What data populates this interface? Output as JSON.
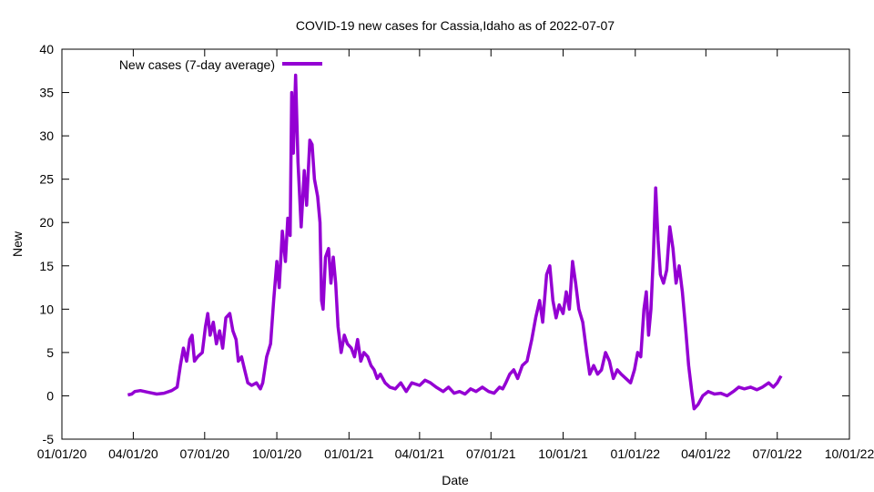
{
  "chart_data": {
    "type": "line",
    "title": "COVID-19 new cases for Cassia,Idaho as of 2022-07-07",
    "xlabel": "Date",
    "ylabel": "New",
    "ylim": [
      -5,
      40
    ],
    "yticks": [
      -5,
      0,
      5,
      10,
      15,
      20,
      25,
      30,
      35,
      40
    ],
    "xlim": [
      "2020-01-01",
      "2022-10-01"
    ],
    "xtick_labels": [
      "01/01/20",
      "04/01/20",
      "07/01/20",
      "10/01/20",
      "01/01/21",
      "04/01/21",
      "07/01/21",
      "10/01/21",
      "01/01/22",
      "04/01/22",
      "07/01/22",
      "10/01/22"
    ],
    "xtick_dates": [
      "2020-01-01",
      "2020-04-01",
      "2020-07-01",
      "2020-10-01",
      "2021-01-01",
      "2021-04-01",
      "2021-07-01",
      "2021-10-01",
      "2022-01-01",
      "2022-04-01",
      "2022-07-01",
      "2022-10-01"
    ],
    "legend_position": "top-left",
    "grid": false,
    "series": [
      {
        "name": "New cases (7-day average)",
        "color": "#9400d3",
        "points": [
          [
            "2020-03-25",
            0.1
          ],
          [
            "2020-03-30",
            0.2
          ],
          [
            "2020-04-03",
            0.5
          ],
          [
            "2020-04-10",
            0.6
          ],
          [
            "2020-04-20",
            0.4
          ],
          [
            "2020-05-01",
            0.2
          ],
          [
            "2020-05-10",
            0.3
          ],
          [
            "2020-05-20",
            0.6
          ],
          [
            "2020-05-27",
            1.0
          ],
          [
            "2020-05-31",
            3.5
          ],
          [
            "2020-06-04",
            5.5
          ],
          [
            "2020-06-08",
            4.0
          ],
          [
            "2020-06-12",
            6.5
          ],
          [
            "2020-06-15",
            7.0
          ],
          [
            "2020-06-18",
            4.0
          ],
          [
            "2020-06-22",
            4.5
          ],
          [
            "2020-06-28",
            5.0
          ],
          [
            "2020-07-02",
            8.0
          ],
          [
            "2020-07-05",
            9.5
          ],
          [
            "2020-07-08",
            7.0
          ],
          [
            "2020-07-12",
            8.5
          ],
          [
            "2020-07-16",
            6.0
          ],
          [
            "2020-07-20",
            7.5
          ],
          [
            "2020-07-24",
            5.5
          ],
          [
            "2020-07-28",
            9.0
          ],
          [
            "2020-08-02",
            9.5
          ],
          [
            "2020-08-06",
            7.5
          ],
          [
            "2020-08-10",
            6.5
          ],
          [
            "2020-08-13",
            4.0
          ],
          [
            "2020-08-17",
            4.5
          ],
          [
            "2020-08-21",
            3.0
          ],
          [
            "2020-08-25",
            1.5
          ],
          [
            "2020-08-30",
            1.2
          ],
          [
            "2020-09-05",
            1.5
          ],
          [
            "2020-09-10",
            0.8
          ],
          [
            "2020-09-13",
            1.5
          ],
          [
            "2020-09-18",
            4.5
          ],
          [
            "2020-09-23",
            6.0
          ],
          [
            "2020-09-27",
            11.0
          ],
          [
            "2020-10-01",
            15.5
          ],
          [
            "2020-10-04",
            12.5
          ],
          [
            "2020-10-08",
            19.0
          ],
          [
            "2020-10-12",
            15.5
          ],
          [
            "2020-10-15",
            20.5
          ],
          [
            "2020-10-18",
            18.5
          ],
          [
            "2020-10-20",
            35.0
          ],
          [
            "2020-10-22",
            28.0
          ],
          [
            "2020-10-25",
            37.0
          ],
          [
            "2020-10-28",
            27.0
          ],
          [
            "2020-11-01",
            19.5
          ],
          [
            "2020-11-05",
            26.0
          ],
          [
            "2020-11-08",
            22.0
          ],
          [
            "2020-11-12",
            29.5
          ],
          [
            "2020-11-15",
            29.0
          ],
          [
            "2020-11-18",
            25.0
          ],
          [
            "2020-11-22",
            23.0
          ],
          [
            "2020-11-25",
            20.0
          ],
          [
            "2020-11-27",
            11.0
          ],
          [
            "2020-11-29",
            10.0
          ],
          [
            "2020-12-02",
            16.0
          ],
          [
            "2020-12-06",
            17.0
          ],
          [
            "2020-12-09",
            13.0
          ],
          [
            "2020-12-12",
            16.0
          ],
          [
            "2020-12-15",
            13.0
          ],
          [
            "2020-12-18",
            8.0
          ],
          [
            "2020-12-22",
            5.0
          ],
          [
            "2020-12-26",
            7.0
          ],
          [
            "2020-12-30",
            6.0
          ],
          [
            "2021-01-04",
            5.5
          ],
          [
            "2021-01-08",
            4.5
          ],
          [
            "2021-01-12",
            6.5
          ],
          [
            "2021-01-16",
            4.0
          ],
          [
            "2021-01-20",
            5.0
          ],
          [
            "2021-01-25",
            4.5
          ],
          [
            "2021-01-29",
            3.5
          ],
          [
            "2021-02-02",
            3.0
          ],
          [
            "2021-02-06",
            2.0
          ],
          [
            "2021-02-10",
            2.5
          ],
          [
            "2021-02-16",
            1.5
          ],
          [
            "2021-02-22",
            1.0
          ],
          [
            "2021-03-01",
            0.8
          ],
          [
            "2021-03-08",
            1.5
          ],
          [
            "2021-03-15",
            0.5
          ],
          [
            "2021-03-22",
            1.5
          ],
          [
            "2021-04-01",
            1.2
          ],
          [
            "2021-04-08",
            1.8
          ],
          [
            "2021-04-15",
            1.5
          ],
          [
            "2021-04-22",
            1.0
          ],
          [
            "2021-05-01",
            0.5
          ],
          [
            "2021-05-08",
            1.0
          ],
          [
            "2021-05-15",
            0.3
          ],
          [
            "2021-05-22",
            0.5
          ],
          [
            "2021-05-29",
            0.2
          ],
          [
            "2021-06-05",
            0.8
          ],
          [
            "2021-06-12",
            0.5
          ],
          [
            "2021-06-20",
            1.0
          ],
          [
            "2021-06-28",
            0.5
          ],
          [
            "2021-07-05",
            0.3
          ],
          [
            "2021-07-12",
            1.0
          ],
          [
            "2021-07-16",
            0.8
          ],
          [
            "2021-07-20",
            1.5
          ],
          [
            "2021-07-25",
            2.5
          ],
          [
            "2021-07-30",
            3.0
          ],
          [
            "2021-08-04",
            2.0
          ],
          [
            "2021-08-10",
            3.5
          ],
          [
            "2021-08-16",
            4.0
          ],
          [
            "2021-08-22",
            6.5
          ],
          [
            "2021-08-27",
            9.0
          ],
          [
            "2021-09-01",
            11.0
          ],
          [
            "2021-09-05",
            8.5
          ],
          [
            "2021-09-10",
            14.0
          ],
          [
            "2021-09-14",
            15.0
          ],
          [
            "2021-09-18",
            11.0
          ],
          [
            "2021-09-22",
            9.0
          ],
          [
            "2021-09-26",
            10.5
          ],
          [
            "2021-10-01",
            9.5
          ],
          [
            "2021-10-05",
            12.0
          ],
          [
            "2021-10-09",
            10.0
          ],
          [
            "2021-10-13",
            15.5
          ],
          [
            "2021-10-17",
            13.0
          ],
          [
            "2021-10-21",
            10.0
          ],
          [
            "2021-10-26",
            8.5
          ],
          [
            "2021-10-31",
            5.0
          ],
          [
            "2021-11-04",
            2.5
          ],
          [
            "2021-11-09",
            3.5
          ],
          [
            "2021-11-14",
            2.5
          ],
          [
            "2021-11-19",
            3.0
          ],
          [
            "2021-11-24",
            5.0
          ],
          [
            "2021-11-29",
            4.0
          ],
          [
            "2021-12-04",
            2.0
          ],
          [
            "2021-12-09",
            3.0
          ],
          [
            "2021-12-14",
            2.5
          ],
          [
            "2021-12-20",
            2.0
          ],
          [
            "2021-12-26",
            1.5
          ],
          [
            "2021-12-31",
            3.0
          ],
          [
            "2022-01-04",
            5.0
          ],
          [
            "2022-01-08",
            4.5
          ],
          [
            "2022-01-12",
            10.0
          ],
          [
            "2022-01-15",
            12.0
          ],
          [
            "2022-01-18",
            7.0
          ],
          [
            "2022-01-21",
            10.0
          ],
          [
            "2022-01-24",
            16.0
          ],
          [
            "2022-01-27",
            24.0
          ],
          [
            "2022-01-30",
            18.0
          ],
          [
            "2022-02-02",
            14.0
          ],
          [
            "2022-02-06",
            13.0
          ],
          [
            "2022-02-10",
            14.5
          ],
          [
            "2022-02-14",
            19.5
          ],
          [
            "2022-02-18",
            17.0
          ],
          [
            "2022-02-22",
            13.0
          ],
          [
            "2022-02-26",
            15.0
          ],
          [
            "2022-03-02",
            12.0
          ],
          [
            "2022-03-06",
            8.0
          ],
          [
            "2022-03-10",
            3.5
          ],
          [
            "2022-03-14",
            0.5
          ],
          [
            "2022-03-17",
            -1.5
          ],
          [
            "2022-03-22",
            -1.0
          ],
          [
            "2022-03-28",
            0.0
          ],
          [
            "2022-04-04",
            0.5
          ],
          [
            "2022-04-12",
            0.2
          ],
          [
            "2022-04-20",
            0.3
          ],
          [
            "2022-04-28",
            0.0
          ],
          [
            "2022-05-06",
            0.5
          ],
          [
            "2022-05-13",
            1.0
          ],
          [
            "2022-05-20",
            0.8
          ],
          [
            "2022-05-28",
            1.0
          ],
          [
            "2022-06-05",
            0.7
          ],
          [
            "2022-06-12",
            1.0
          ],
          [
            "2022-06-20",
            1.5
          ],
          [
            "2022-06-26",
            1.0
          ],
          [
            "2022-07-01",
            1.5
          ],
          [
            "2022-07-04",
            2.0
          ],
          [
            "2022-07-06",
            2.3
          ]
        ]
      }
    ]
  }
}
